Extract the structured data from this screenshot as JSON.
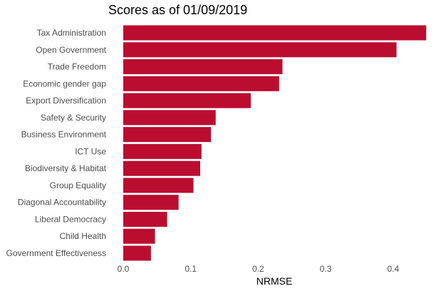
{
  "chart_data": {
    "type": "bar",
    "orientation": "horizontal",
    "title": "Scores as of 01/09/2019",
    "xlabel": "NRMSE",
    "ylabel": "",
    "categories": [
      "Tax Administration",
      "Open Government",
      "Trade Freedom",
      "Economic gender gap",
      "Export Diversification",
      "Safety & Security",
      "Business Environment",
      "ICT Use",
      "Biodiversity & Habitat",
      "Group Equality",
      "Diagonal Accountability",
      "Liberal Democracy",
      "Child Health",
      "Government Effectiveness"
    ],
    "values": [
      0.449,
      0.405,
      0.236,
      0.231,
      0.189,
      0.137,
      0.13,
      0.116,
      0.114,
      0.104,
      0.082,
      0.065,
      0.047,
      0.041
    ],
    "xlim": [
      0,
      0.45
    ],
    "xticks": [
      0.0,
      0.1,
      0.2,
      0.3,
      0.4
    ],
    "xtick_labels": [
      "0.0",
      "0.1",
      "0.2",
      "0.3",
      "0.4"
    ],
    "grid": false,
    "legend": "none",
    "bar_color": "#bb0d30"
  }
}
